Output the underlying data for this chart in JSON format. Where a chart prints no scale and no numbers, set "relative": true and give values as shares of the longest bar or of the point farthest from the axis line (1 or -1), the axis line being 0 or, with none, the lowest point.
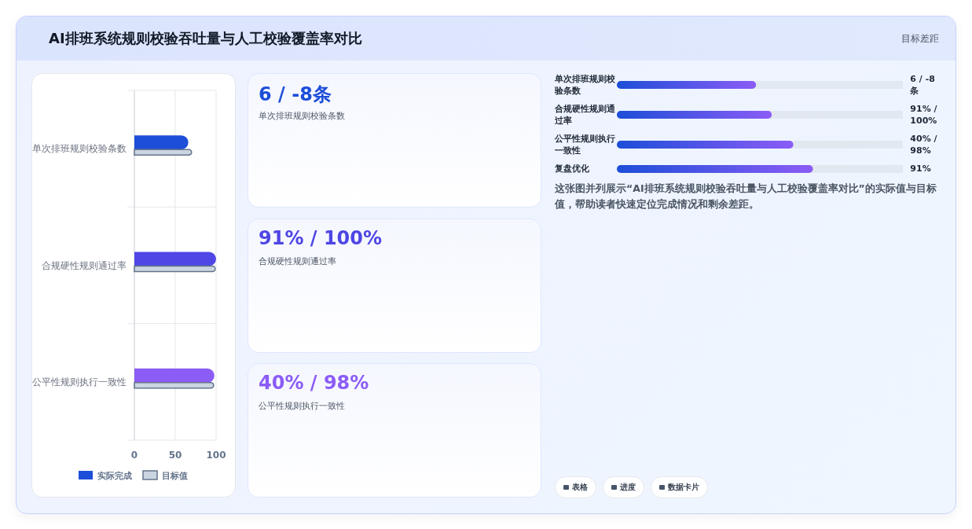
{
  "chart_data": [
    {
      "type": "other",
      "title": "AI排班系统规则校验吞吐量与人工校验覆盖率对比",
      "subtitle": "目标差距"
    },
    {
      "type": "bar",
      "orientation": "horizontal",
      "categories": [
        "单次排班规则校验条数",
        "合规硬性规则通过率",
        "公平性规则执行一致性"
      ],
      "series": [
        {
          "name": "实际完成",
          "colors": [
            "#1d4ed8",
            "#4f46e5",
            "#8b5cf6"
          ],
          "values": [
            66,
            100,
            98
          ]
        },
        {
          "name": "目标值",
          "color": "#cbd5e1",
          "values": [
            70,
            99,
            97
          ]
        }
      ],
      "xlim": [
        0,
        100
      ],
      "xticks": [
        0,
        50,
        100
      ],
      "grid": true,
      "legend": "bottom"
    },
    {
      "type": "other",
      "annotations": [
        "6 / -8条",
        "单次排班规则校验条数",
        "91% / 100%",
        "合规硬性规则通过率",
        "40% / 98%",
        "公平性规则执行一致性"
      ],
      "colors": [
        "#1d4ed8",
        "#4f46e5",
        "#8b5cf6"
      ]
    },
    {
      "type": "bar",
      "orientation": "horizontal",
      "relative": true,
      "categories": [
        "单次排班规则校验条数",
        "合规硬性规则通过率",
        "公平性规则执行一致性",
        "复盘优化"
      ],
      "series": [
        {
          "color": "#1d4ed8",
          "values": [
            0.71,
            0.79,
            0.9,
            1
          ]
        }
      ],
      "value_labels": [
        "6 / -8条",
        "91% / 100%",
        "40% / 98%",
        "91%"
      ],
      "annotations": [
        "这张图并列展示“AI排班系统规则校验吞吐量与人工校验覆盖率对比”的实际值与目标值，帮助读者快速定位完成情况和剩余差距。",
        "表格",
        "进度",
        "数据卡片"
      ]
    }
  ]
}
